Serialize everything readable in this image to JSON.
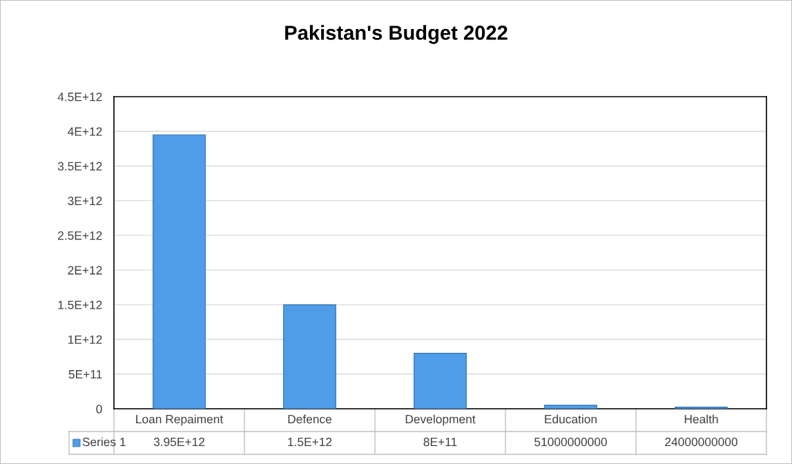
{
  "chart_data": {
    "type": "bar",
    "title": "Pakistan's Budget 2022",
    "categories": [
      "Loan Repaiment",
      "Defence",
      "Development",
      "Education",
      "Health"
    ],
    "series": [
      {
        "name": "Series 1",
        "color": "#4f9de8",
        "values": [
          3950000000000.0,
          1500000000000.0,
          800000000000.0,
          51000000000.0,
          24000000000.0
        ],
        "value_labels": [
          "3.95E+12",
          "1.5E+12",
          "8E+11",
          "51000000000",
          "24000000000"
        ]
      }
    ],
    "ylim": [
      0,
      4500000000000.0
    ],
    "yticks": [
      0,
      {
        "value": 500000000000.0,
        "label": "5E+11"
      },
      {
        "value": 1000000000000.0,
        "label": "1E+12"
      },
      {
        "value": 1500000000000.0,
        "label": "1.5E+12"
      },
      {
        "value": 2000000000000.0,
        "label": "2E+12"
      },
      {
        "value": 2500000000000.0,
        "label": "2.5E+12"
      },
      {
        "value": 3000000000000.0,
        "label": "3E+12"
      },
      {
        "value": 3500000000000.0,
        "label": "3.5E+12"
      },
      {
        "value": 4000000000000.0,
        "label": "4E+12"
      },
      {
        "value": 4500000000000.0,
        "label": "4.5E+12"
      }
    ],
    "grid": "y",
    "legend": "bottom left"
  }
}
